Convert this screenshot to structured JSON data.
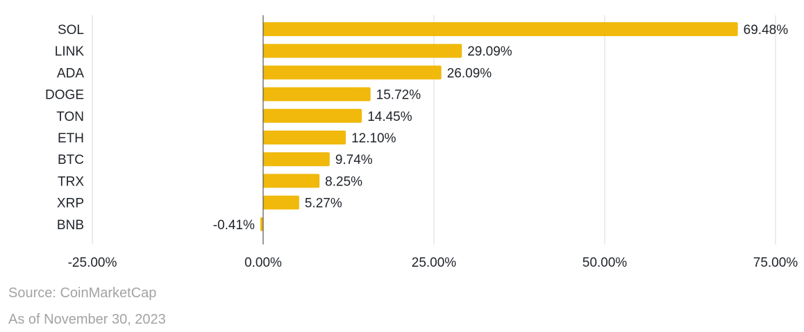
{
  "chart_data": {
    "type": "bar",
    "orientation": "horizontal",
    "categories": [
      "SOL",
      "LINK",
      "ADA",
      "DOGE",
      "TON",
      "ETH",
      "BTC",
      "TRX",
      "XRP",
      "BNB"
    ],
    "values": [
      69.48,
      29.09,
      26.09,
      15.72,
      14.45,
      12.1,
      9.74,
      8.25,
      5.27,
      -0.41
    ],
    "value_labels": [
      "69.48%",
      "29.09%",
      "26.09%",
      "15.72%",
      "14.45%",
      "12.10%",
      "9.74%",
      "8.25%",
      "5.27%",
      "-0.41%"
    ],
    "x_ticks": [
      -25,
      0,
      25,
      50,
      75
    ],
    "x_tick_labels": [
      "-25.00%",
      "0.00%",
      "25.00%",
      "50.00%",
      "75.00%"
    ],
    "xlim": [
      -25,
      75
    ],
    "title": "",
    "xlabel": "",
    "ylabel": "",
    "grid": "vertical",
    "legend": "none",
    "bar_color": "#F0B90B",
    "grid_color": "#D9D9D9",
    "axis_color": "#555555",
    "text_color": "#1E2329"
  },
  "footnotes": {
    "source": "Source: CoinMarketCap",
    "as_of": "As of November 30, 2023"
  }
}
